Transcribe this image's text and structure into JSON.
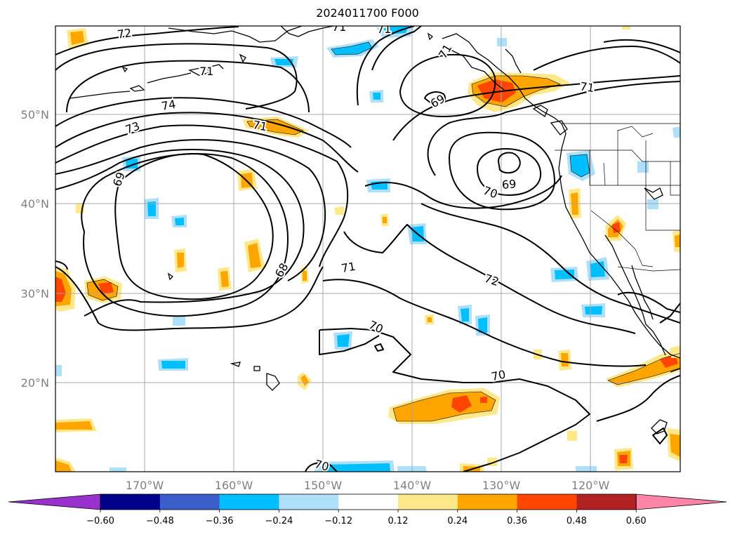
{
  "title": "2024011700 F000",
  "axes": {
    "lon_labels": [
      "170°W",
      "160°W",
      "150°W",
      "140°W",
      "130°W",
      "120°W"
    ],
    "lat_labels": [
      "50°N",
      "40°N",
      "30°N",
      "20°N"
    ]
  },
  "contour_labels": [
    "72",
    "71",
    "71",
    "71",
    "69",
    "74",
    "73",
    "71",
    "69",
    "71",
    "70",
    "69",
    "71",
    "72",
    "68",
    "70",
    "70",
    "70",
    "71"
  ],
  "colorbar": {
    "ticks": [
      "−0.60",
      "−0.48",
      "−0.36",
      "−0.24",
      "−0.12",
      "0.12",
      "0.24",
      "0.36",
      "0.48",
      "0.60"
    ],
    "colors": [
      "#9932cc",
      "#00008b",
      "#3a5fcd",
      "#00bfff",
      "#afe0fa",
      "#ffffff",
      "#ffe88a",
      "#ffa500",
      "#ff4500",
      "#b22222",
      "#ff85a8"
    ]
  }
}
